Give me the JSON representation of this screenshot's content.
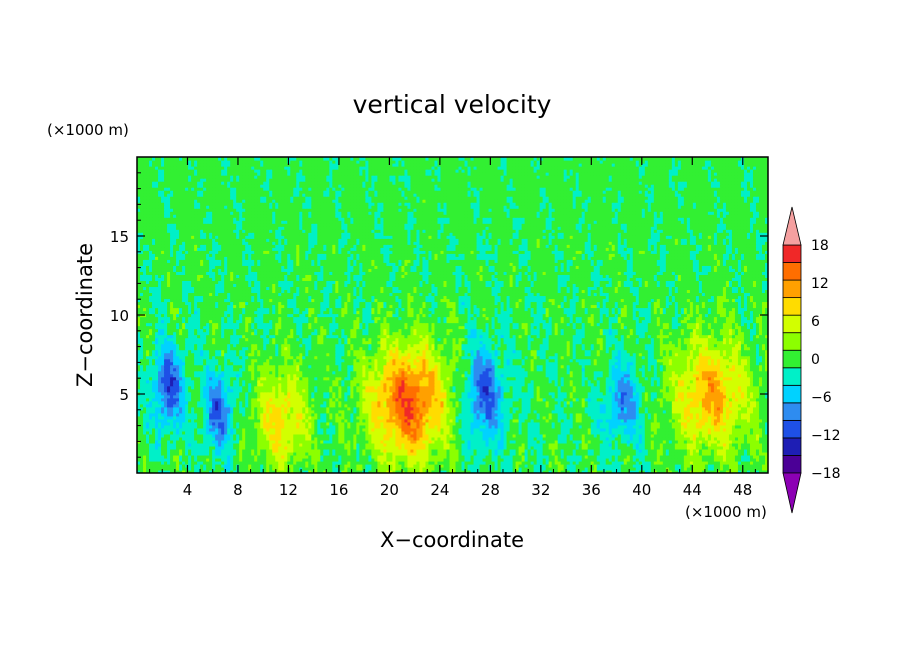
{
  "chart_data": {
    "type": "heatmap",
    "title": "vertical velocity",
    "xlabel": "X−coordinate",
    "ylabel": "Z−coordinate",
    "x_unit": "(×1000 m)",
    "y_unit": "(×1000 m)",
    "xlim": [
      0,
      50
    ],
    "ylim": [
      0,
      20
    ],
    "x_ticks": [
      4,
      8,
      12,
      16,
      20,
      24,
      28,
      32,
      36,
      40,
      44,
      48
    ],
    "y_ticks": [
      5,
      10,
      15
    ],
    "colorbar": {
      "levels": [
        -21,
        -18,
        -15,
        -12,
        -9,
        -6,
        -3,
        0,
        3,
        6,
        9,
        12,
        15,
        18,
        21
      ],
      "labels": [
        "18",
        "12",
        "6",
        "0",
        "−6",
        "−12",
        "−18"
      ],
      "label_values": [
        18,
        12,
        6,
        0,
        -6,
        -12,
        -18
      ],
      "colors": [
        "#8C00B4",
        "#4B0096",
        "#1E1EB4",
        "#1E50E6",
        "#2E8CF0",
        "#00D2FF",
        "#00F0C8",
        "#32F032",
        "#8CFF00",
        "#D2FF00",
        "#FFDC00",
        "#FFA000",
        "#FF6E00",
        "#F02828",
        "#F5A0A0"
      ]
    },
    "features": [
      {
        "kind": "updraft",
        "x_center": 11.5,
        "z_center": 3.5,
        "x_radius": 2.2,
        "z_radius": 3.2,
        "peak": 9
      },
      {
        "kind": "updraft",
        "x_center": 21.5,
        "z_center": 4.5,
        "x_radius": 3.0,
        "z_radius": 3.5,
        "peak": 17
      },
      {
        "kind": "updraft",
        "x_center": 45.5,
        "z_center": 5.0,
        "x_radius": 3.0,
        "z_radius": 3.5,
        "peak": 12
      },
      {
        "kind": "downdraft",
        "x_center": 2.5,
        "z_center": 5.5,
        "x_radius": 1.2,
        "z_radius": 2.5,
        "peak": -12
      },
      {
        "kind": "downdraft",
        "x_center": 6.5,
        "z_center": 4.0,
        "x_radius": 1.2,
        "z_radius": 2.5,
        "peak": -10
      },
      {
        "kind": "downdraft",
        "x_center": 27.5,
        "z_center": 5.0,
        "x_radius": 1.5,
        "z_radius": 3.0,
        "peak": -11
      },
      {
        "kind": "downdraft",
        "x_center": 38.5,
        "z_center": 4.5,
        "x_radius": 1.5,
        "z_radius": 2.5,
        "peak": -8
      }
    ]
  }
}
